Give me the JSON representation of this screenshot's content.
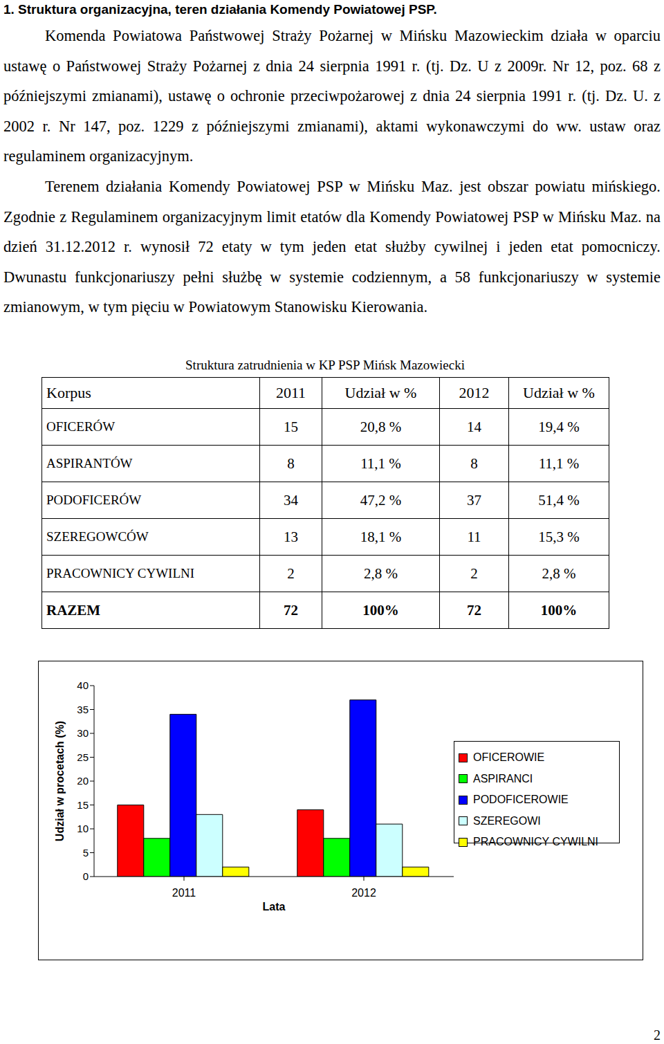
{
  "heading": "1. Struktura organizacyjna, teren działania Komendy Powiatowej PSP.",
  "paragraphs": [
    "Komenda Powiatowa Państwowej Straży Pożarnej w Mińsku Mazowieckim działa w oparciu ustawę o Państwowej Straży Pożarnej z dnia 24 sierpnia 1991 r. (tj. Dz. U z 2009r. Nr 12, poz. 68 z późniejszymi zmianami), ustawę o ochronie przeciwpożarowej z dnia 24 sierpnia 1991 r. (tj. Dz. U. z 2002 r. Nr 147, poz. 1229 z późniejszymi zmianami), aktami wykonawczymi do ww. ustaw oraz regulaminem organizacyjnym.",
    "Terenem działania Komendy Powiatowej PSP w Mińsku Maz. jest obszar powiatu mińskiego. Zgodnie z Regulaminem organizacyjnym limit etatów dla Komendy Powiatowej PSP w Mińsku Maz. na dzień 31.12.2012 r. wynosił 72 etaty w tym jeden etat służby cywilnej i jeden etat pomocniczy. Dwunastu funkcjonariuszy pełni służbę w systemie codziennym, a 58 funkcjonariuszy w systemie zmianowym, w tym pięciu w Powiatowym Stanowisku Kierowania."
  ],
  "table": {
    "title": "Struktura zatrudnienia w KP PSP Mińsk Mazowiecki",
    "header": [
      "Korpus",
      "2011",
      "Udział w %",
      "2012",
      "Udział w %"
    ],
    "rows": [
      [
        "OFICERÓW",
        "15",
        "20,8 %",
        "14",
        "19,4 %"
      ],
      [
        "ASPIRANTÓW",
        "8",
        "11,1 %",
        "8",
        "11,1 %"
      ],
      [
        "PODOFICERÓW",
        "34",
        "47,2 %",
        "37",
        "51,4 %"
      ],
      [
        "SZEREGOWCÓW",
        "13",
        "18,1 %",
        "11",
        "15,3 %"
      ],
      [
        "PRACOWNICY CYWILNI",
        "2",
        "2,8 %",
        "2",
        "2,8 %"
      ],
      [
        "RAZEM",
        "72",
        "100%",
        "72",
        "100%"
      ]
    ]
  },
  "chart_data": {
    "type": "bar",
    "x_label": "Lata",
    "y_label": "Udział w procetach (%)",
    "categories": [
      "2011",
      "2012"
    ],
    "series": [
      {
        "name": "OFICEROWIE",
        "color": "#ff0000",
        "values": [
          15,
          14
        ]
      },
      {
        "name": "ASPIRANCI",
        "color": "#00ff00",
        "values": [
          8,
          8
        ]
      },
      {
        "name": "PODOFICEROWIE",
        "color": "#0000ff",
        "values": [
          34,
          37
        ]
      },
      {
        "name": "SZEREGOWI",
        "color": "#ccffff",
        "values": [
          13,
          11
        ]
      },
      {
        "name": "PRACOWNICY CYWILNI",
        "color": "#ffff00",
        "values": [
          2,
          2
        ]
      }
    ],
    "ylim": [
      0,
      40
    ],
    "yticks": [
      0,
      5,
      10,
      15,
      20,
      25,
      30,
      35,
      40
    ],
    "grid": false,
    "legend": "right"
  },
  "page_number": "2"
}
